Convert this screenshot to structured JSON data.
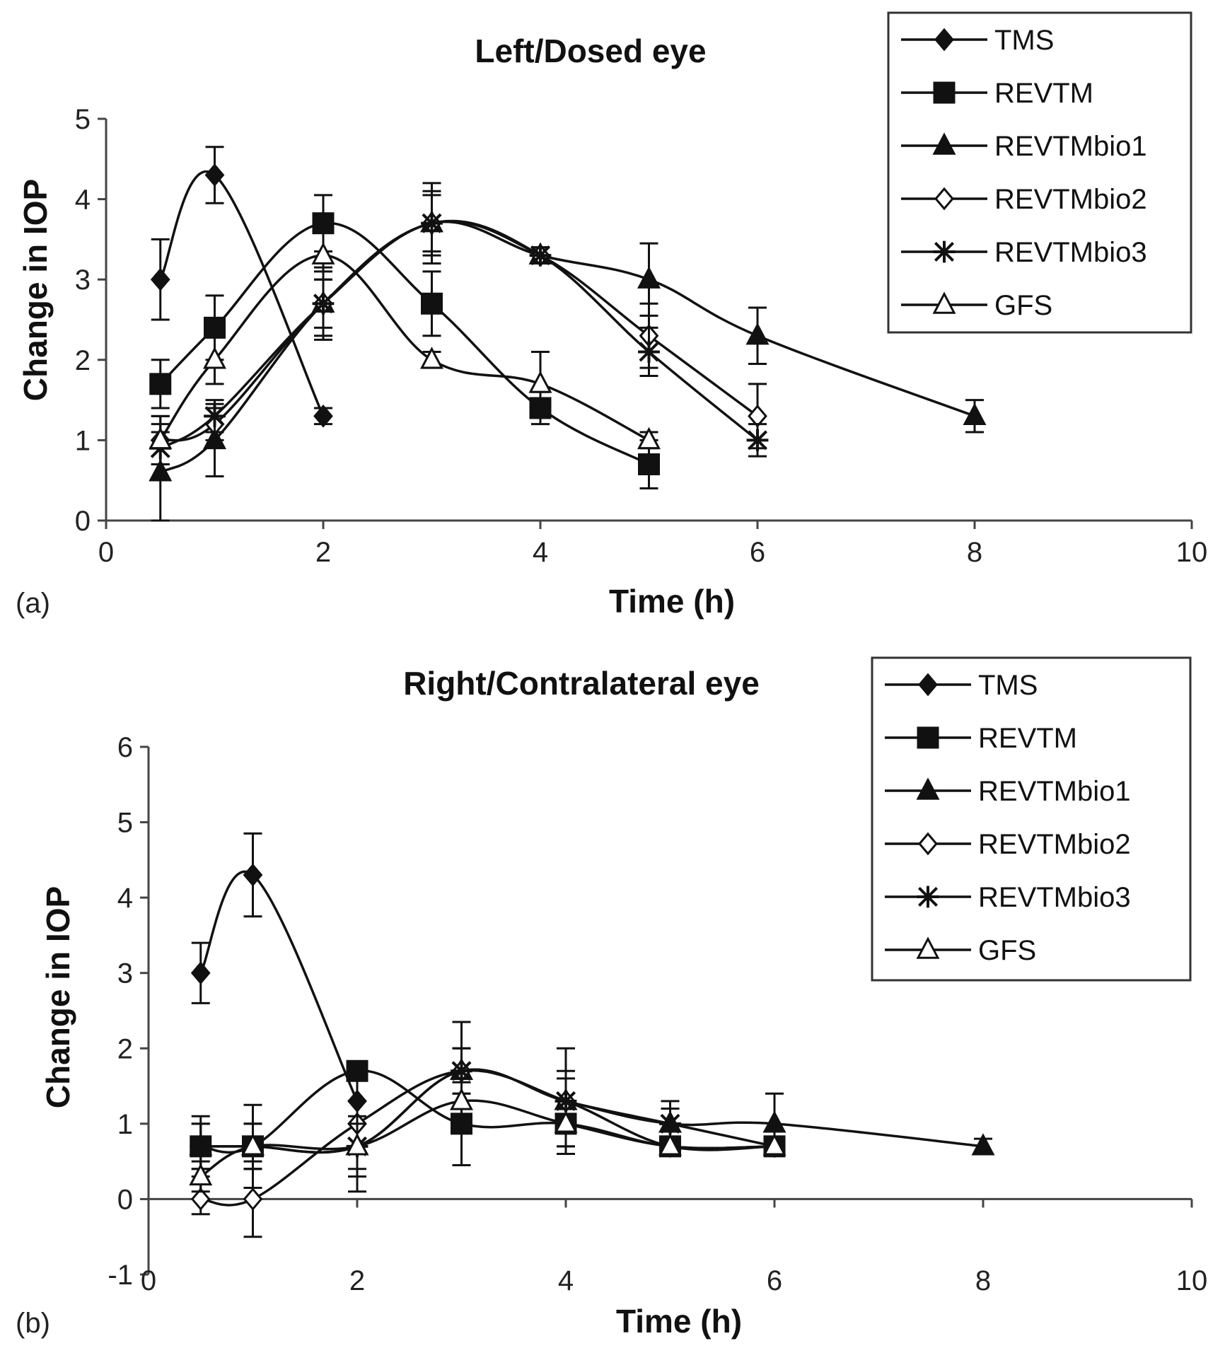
{
  "chart_data": [
    {
      "type": "line",
      "panel_label": "(a)",
      "title": "Left/Dosed eye",
      "xlabel": "Time (h)",
      "ylabel": "Change in IOP",
      "xlim": [
        0,
        10
      ],
      "ylim": [
        0,
        5
      ],
      "xticks": [
        0,
        2,
        4,
        6,
        8,
        10
      ],
      "yticks": [
        0,
        1,
        2,
        3,
        4,
        5
      ],
      "legend": "top-right",
      "series": [
        {
          "name": "TMS",
          "marker": "diamond",
          "x": [
            0.5,
            1,
            2
          ],
          "y": [
            3.0,
            4.3,
            1.3
          ],
          "err": [
            0.5,
            0.35,
            0.1
          ]
        },
        {
          "name": "REVTM",
          "marker": "square",
          "x": [
            0.5,
            1,
            2,
            3,
            4,
            5
          ],
          "y": [
            1.7,
            2.4,
            3.7,
            2.7,
            1.4,
            0.7
          ],
          "err": [
            0.3,
            0.4,
            0.35,
            0.4,
            0.2,
            0.3
          ]
        },
        {
          "name": "REVTMbio1",
          "marker": "triangle",
          "x": [
            0.5,
            1,
            2,
            3,
            4,
            5,
            6,
            8
          ],
          "y": [
            0.6,
            1.0,
            2.7,
            3.7,
            3.3,
            3.0,
            2.3,
            1.3
          ],
          "err": [
            0.6,
            0.45,
            0.45,
            0.5,
            0.1,
            0.45,
            0.35,
            0.2
          ]
        },
        {
          "name": "REVTMbio2",
          "marker": "open-diamond",
          "x": [
            0.5,
            1,
            2,
            3,
            4,
            5,
            6
          ],
          "y": [
            1.0,
            1.2,
            2.7,
            3.7,
            3.3,
            2.3,
            1.3
          ],
          "err": [
            0.3,
            0.2,
            0.4,
            0.4,
            0.1,
            0.4,
            0.4
          ]
        },
        {
          "name": "REVTMbio3",
          "marker": "star",
          "x": [
            0.5,
            1,
            2,
            3,
            4,
            5,
            6
          ],
          "y": [
            0.9,
            1.3,
            2.7,
            3.7,
            3.3,
            2.1,
            1.0
          ],
          "err": [
            0.2,
            0.2,
            0.3,
            0.35,
            0.1,
            0.3,
            0.2
          ]
        },
        {
          "name": "GFS",
          "marker": "open-triangle",
          "x": [
            0.5,
            1,
            2,
            3,
            4,
            5
          ],
          "y": [
            1.0,
            2.0,
            3.3,
            2.0,
            1.7,
            1.0
          ],
          "err": [
            0.3,
            0.3,
            0.3,
            0.1,
            0.4,
            0.1
          ]
        }
      ]
    },
    {
      "type": "line",
      "panel_label": "(b)",
      "title": "Right/Contralateral eye",
      "xlabel": "Time (h)",
      "ylabel": "Change in IOP",
      "xlim": [
        0,
        10
      ],
      "ylim": [
        -1,
        6
      ],
      "xticks": [
        0,
        2,
        4,
        6,
        8,
        10
      ],
      "yticks": [
        -1,
        0,
        1,
        2,
        3,
        4,
        5,
        6
      ],
      "legend": "top-right",
      "series": [
        {
          "name": "TMS",
          "marker": "diamond",
          "x": [
            0.5,
            1,
            2
          ],
          "y": [
            3.0,
            4.3,
            1.3
          ],
          "err": [
            0.4,
            0.55,
            0.3
          ]
        },
        {
          "name": "REVTM",
          "marker": "square",
          "x": [
            0.5,
            1,
            2,
            3,
            4,
            5,
            6
          ],
          "y": [
            0.7,
            0.7,
            1.7,
            1.0,
            1.0,
            0.7,
            0.7
          ],
          "err": [
            0.4,
            0.3,
            0.1,
            0.55,
            0.3,
            0.1,
            0.1
          ]
        },
        {
          "name": "REVTMbio1",
          "marker": "triangle",
          "x": [
            0.5,
            1,
            2,
            3,
            4,
            5,
            6,
            8
          ],
          "y": [
            0.7,
            0.7,
            0.7,
            1.7,
            1.3,
            1.0,
            1.0,
            0.7
          ],
          "err": [
            0.3,
            0.55,
            0.6,
            0.65,
            0.7,
            0.3,
            0.4,
            0.1
          ]
        },
        {
          "name": "REVTMbio2",
          "marker": "open-diamond",
          "x": [
            0.5,
            1,
            2,
            3,
            4,
            5,
            6
          ],
          "y": [
            0.0,
            0.0,
            1.0,
            1.7,
            1.3,
            0.7,
            0.7
          ],
          "err": [
            0.2,
            0.5,
            0.3,
            0.3,
            0.3,
            0.1,
            0.1
          ]
        },
        {
          "name": "REVTMbio3",
          "marker": "star",
          "x": [
            0.5,
            1,
            2,
            3,
            4,
            5,
            6
          ],
          "y": [
            0.7,
            0.7,
            0.7,
            1.7,
            1.3,
            1.0,
            0.7
          ],
          "err": [
            0.3,
            0.3,
            0.4,
            0.3,
            0.4,
            0.2,
            0.1
          ]
        },
        {
          "name": "GFS",
          "marker": "open-triangle",
          "x": [
            0.5,
            1,
            2,
            3,
            4,
            5,
            6
          ],
          "y": [
            0.3,
            0.7,
            0.7,
            1.3,
            1.0,
            0.7,
            0.7
          ],
          "err": [
            0.2,
            0.3,
            0.3,
            0.3,
            0.3,
            0.1,
            0.1
          ]
        }
      ]
    }
  ]
}
